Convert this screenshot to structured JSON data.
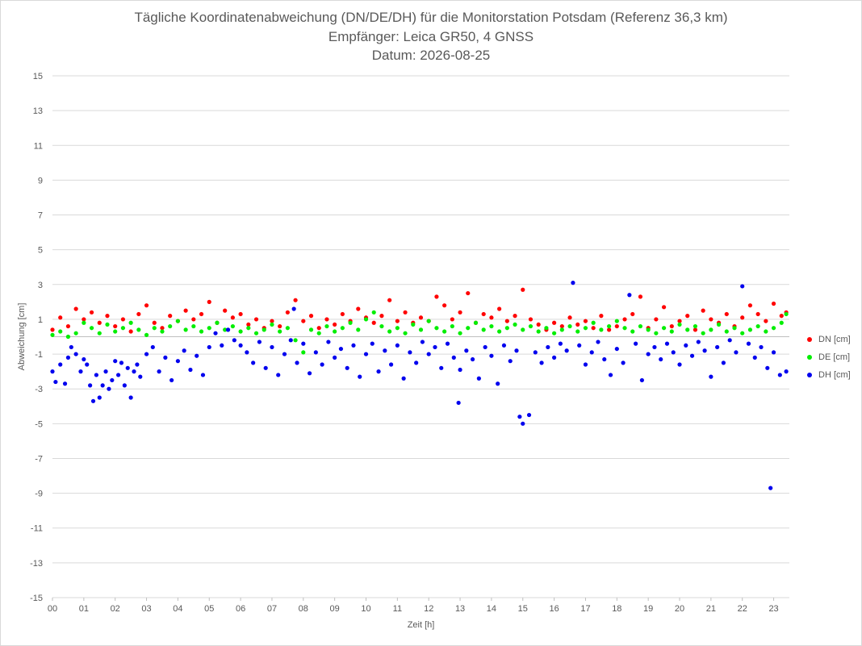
{
  "chart_data": {
    "type": "scatter",
    "title_lines": [
      "Tägliche Koordinatenabweichung (DN/DE/DH) für die Monitorstation Potsdam (Referenz 36,3 km)",
      "Empfänger: Leica GR50, 4 GNSS",
      "Datum: 2026-08-25"
    ],
    "xlabel": "Zeit [h]",
    "ylabel": "Abweichung [cm]",
    "xlim": [
      0,
      23.5
    ],
    "ylim": [
      -15,
      15
    ],
    "yticks": [
      15,
      13,
      11,
      9,
      7,
      5,
      3,
      1,
      -1,
      -3,
      -5,
      -7,
      -9,
      -11,
      -13,
      -15
    ],
    "xticks": [
      "00",
      "01",
      "02",
      "03",
      "04",
      "05",
      "06",
      "07",
      "08",
      "09",
      "10",
      "11",
      "12",
      "13",
      "14",
      "15",
      "16",
      "17",
      "18",
      "19",
      "20",
      "21",
      "22",
      "23"
    ],
    "grid": "horizontal",
    "legend_position": "right",
    "series": [
      {
        "name": "DN [cm]",
        "color": "#ff0000",
        "x": [
          0.0,
          0.25,
          0.5,
          0.75,
          1.0,
          1.25,
          1.5,
          1.75,
          2.0,
          2.25,
          2.5,
          2.75,
          3.0,
          3.25,
          3.5,
          3.75,
          4.0,
          4.25,
          4.5,
          4.75,
          5.0,
          5.25,
          5.5,
          5.75,
          6.0,
          6.25,
          6.5,
          6.75,
          7.0,
          7.25,
          7.5,
          7.75,
          8.0,
          8.25,
          8.5,
          8.75,
          9.0,
          9.25,
          9.5,
          9.75,
          10.0,
          10.25,
          10.5,
          10.75,
          11.0,
          11.25,
          11.5,
          11.75,
          12.0,
          12.25,
          12.5,
          12.75,
          13.0,
          13.25,
          13.5,
          13.75,
          14.0,
          14.25,
          14.5,
          14.75,
          15.0,
          15.25,
          15.5,
          15.75,
          16.0,
          16.25,
          16.5,
          16.75,
          17.0,
          17.25,
          17.5,
          17.75,
          18.0,
          18.25,
          18.5,
          18.75,
          19.0,
          19.25,
          19.5,
          19.75,
          20.0,
          20.25,
          20.5,
          20.75,
          21.0,
          21.25,
          21.5,
          21.75,
          22.0,
          22.25,
          22.5,
          22.75,
          23.0,
          23.25,
          23.4
        ],
        "y": [
          0.4,
          1.1,
          0.6,
          1.6,
          1.0,
          1.4,
          0.8,
          1.2,
          0.6,
          1.0,
          0.3,
          1.3,
          1.8,
          0.8,
          0.5,
          1.2,
          0.9,
          1.5,
          1.0,
          1.3,
          2.0,
          0.8,
          1.5,
          1.1,
          1.3,
          0.7,
          1.0,
          0.5,
          0.9,
          0.6,
          1.4,
          2.1,
          0.9,
          1.2,
          0.5,
          1.0,
          0.7,
          1.3,
          0.9,
          1.6,
          1.1,
          0.8,
          1.2,
          2.1,
          0.9,
          1.4,
          0.8,
          1.1,
          0.9,
          2.3,
          1.8,
          1.0,
          1.4,
          2.5,
          0.8,
          1.3,
          1.1,
          1.6,
          0.9,
          1.2,
          2.7,
          1.0,
          0.7,
          0.4,
          0.8,
          0.6,
          1.1,
          0.7,
          0.9,
          0.5,
          1.2,
          0.4,
          0.6,
          1.0,
          1.3,
          2.3,
          0.5,
          1.0,
          1.7,
          0.6,
          0.9,
          1.2,
          0.4,
          1.5,
          1.0,
          0.8,
          1.3,
          0.6,
          1.1,
          1.8,
          1.3,
          0.9,
          1.9,
          1.2,
          1.4
        ]
      },
      {
        "name": "DE [cm]",
        "color": "#00ee00",
        "x": [
          0.0,
          0.25,
          0.5,
          0.75,
          1.0,
          1.25,
          1.5,
          1.75,
          2.0,
          2.25,
          2.5,
          2.75,
          3.0,
          3.25,
          3.5,
          3.75,
          4.0,
          4.25,
          4.5,
          4.75,
          5.0,
          5.25,
          5.5,
          5.75,
          6.0,
          6.25,
          6.5,
          6.75,
          7.0,
          7.25,
          7.5,
          7.75,
          8.0,
          8.25,
          8.5,
          8.75,
          9.0,
          9.25,
          9.5,
          9.75,
          10.0,
          10.25,
          10.5,
          10.75,
          11.0,
          11.25,
          11.5,
          11.75,
          12.0,
          12.25,
          12.5,
          12.75,
          13.0,
          13.25,
          13.5,
          13.75,
          14.0,
          14.25,
          14.5,
          14.75,
          15.0,
          15.25,
          15.5,
          15.75,
          16.0,
          16.25,
          16.5,
          16.75,
          17.0,
          17.25,
          17.5,
          17.75,
          18.0,
          18.25,
          18.5,
          18.75,
          19.0,
          19.25,
          19.5,
          19.75,
          20.0,
          20.25,
          20.5,
          20.75,
          21.0,
          21.25,
          21.5,
          21.75,
          22.0,
          22.25,
          22.5,
          22.75,
          23.0,
          23.25,
          23.4
        ],
        "y": [
          0.1,
          0.3,
          0.0,
          0.2,
          0.8,
          0.5,
          0.2,
          0.7,
          0.3,
          0.5,
          0.8,
          0.4,
          0.1,
          0.5,
          0.3,
          0.6,
          0.9,
          0.4,
          0.6,
          0.3,
          0.5,
          0.8,
          0.4,
          0.6,
          0.3,
          0.5,
          0.2,
          0.4,
          0.7,
          0.3,
          0.5,
          -0.2,
          -0.9,
          0.4,
          0.2,
          0.6,
          0.3,
          0.5,
          0.8,
          0.4,
          1.0,
          1.4,
          0.6,
          0.3,
          0.5,
          0.2,
          0.7,
          0.4,
          0.9,
          0.5,
          0.3,
          0.6,
          0.2,
          0.5,
          0.8,
          0.4,
          0.6,
          0.3,
          0.5,
          0.7,
          0.4,
          0.6,
          0.3,
          0.5,
          0.2,
          0.4,
          0.6,
          0.3,
          0.5,
          0.8,
          0.4,
          0.6,
          0.9,
          0.5,
          0.3,
          0.6,
          0.4,
          0.2,
          0.5,
          0.3,
          0.7,
          0.4,
          0.6,
          0.2,
          0.4,
          0.7,
          0.3,
          0.5,
          0.2,
          0.4,
          0.6,
          0.3,
          0.5,
          0.8,
          1.3
        ]
      },
      {
        "name": "DH [cm]",
        "color": "#0000ee",
        "x": [
          0.0,
          0.1,
          0.25,
          0.4,
          0.5,
          0.6,
          0.75,
          0.9,
          1.0,
          1.1,
          1.2,
          1.3,
          1.4,
          1.5,
          1.6,
          1.7,
          1.8,
          1.9,
          2.0,
          2.1,
          2.2,
          2.3,
          2.4,
          2.5,
          2.6,
          2.7,
          2.8,
          3.0,
          3.2,
          3.4,
          3.6,
          3.8,
          4.0,
          4.2,
          4.4,
          4.6,
          4.8,
          5.0,
          5.2,
          5.4,
          5.6,
          5.8,
          6.0,
          6.2,
          6.4,
          6.6,
          6.8,
          7.0,
          7.2,
          7.4,
          7.6,
          7.7,
          7.8,
          8.0,
          8.2,
          8.4,
          8.6,
          8.8,
          9.0,
          9.2,
          9.4,
          9.6,
          9.8,
          10.0,
          10.2,
          10.4,
          10.6,
          10.8,
          11.0,
          11.2,
          11.4,
          11.6,
          11.8,
          12.0,
          12.2,
          12.4,
          12.6,
          12.8,
          12.95,
          13.0,
          13.2,
          13.4,
          13.6,
          13.8,
          14.0,
          14.2,
          14.4,
          14.6,
          14.8,
          14.9,
          15.0,
          15.2,
          15.4,
          15.6,
          15.8,
          16.0,
          16.2,
          16.4,
          16.6,
          16.8,
          17.0,
          17.2,
          17.4,
          17.6,
          17.8,
          18.0,
          18.2,
          18.4,
          18.6,
          18.8,
          19.0,
          19.2,
          19.4,
          19.6,
          19.8,
          20.0,
          20.2,
          20.4,
          20.6,
          20.8,
          21.0,
          21.2,
          21.4,
          21.6,
          21.8,
          22.0,
          22.2,
          22.4,
          22.6,
          22.8,
          22.9,
          23.0,
          23.2,
          23.4
        ],
        "y": [
          -2.0,
          -2.6,
          -1.6,
          -2.7,
          -1.2,
          -0.6,
          -1.0,
          -2.0,
          -1.3,
          -1.6,
          -2.8,
          -3.7,
          -2.2,
          -3.5,
          -2.8,
          -2.0,
          -3.0,
          -2.5,
          -1.4,
          -2.2,
          -1.5,
          -2.8,
          -1.8,
          -3.5,
          -2.0,
          -1.6,
          -2.3,
          -1.0,
          -0.6,
          -2.0,
          -1.2,
          -2.5,
          -1.4,
          -0.8,
          -1.9,
          -1.1,
          -2.2,
          -0.6,
          0.2,
          -0.5,
          0.4,
          -0.2,
          -0.5,
          -0.9,
          -1.5,
          -0.3,
          -1.8,
          -0.6,
          -2.2,
          -1.0,
          -0.2,
          1.6,
          -1.5,
          -0.4,
          -2.1,
          -0.9,
          -1.6,
          -0.3,
          -1.2,
          -0.7,
          -1.8,
          -0.5,
          -2.3,
          -1.0,
          -0.4,
          -2.0,
          -0.8,
          -1.6,
          -0.5,
          -2.4,
          -0.9,
          -1.5,
          -0.3,
          -1.0,
          -0.6,
          -1.8,
          -0.4,
          -1.2,
          -3.8,
          -1.9,
          -0.8,
          -1.3,
          -2.4,
          -0.6,
          -1.1,
          -2.7,
          -0.5,
          -1.4,
          -0.8,
          -4.6,
          -5.0,
          -4.5,
          -0.9,
          -1.5,
          -0.6,
          -1.2,
          -0.4,
          -0.8,
          3.1,
          -0.5,
          -1.6,
          -0.9,
          -0.3,
          -1.3,
          -2.2,
          -0.7,
          -1.5,
          2.4,
          -0.4,
          -2.5,
          -1.0,
          -0.6,
          -1.3,
          -0.4,
          -0.9,
          -1.6,
          -0.5,
          -1.1,
          -0.3,
          -0.8,
          -2.3,
          -0.6,
          -1.5,
          -0.2,
          -0.9,
          2.9,
          -0.4,
          -1.2,
          -0.6,
          -1.8,
          -8.7,
          -0.9,
          -2.2,
          -2.0
        ]
      }
    ]
  }
}
